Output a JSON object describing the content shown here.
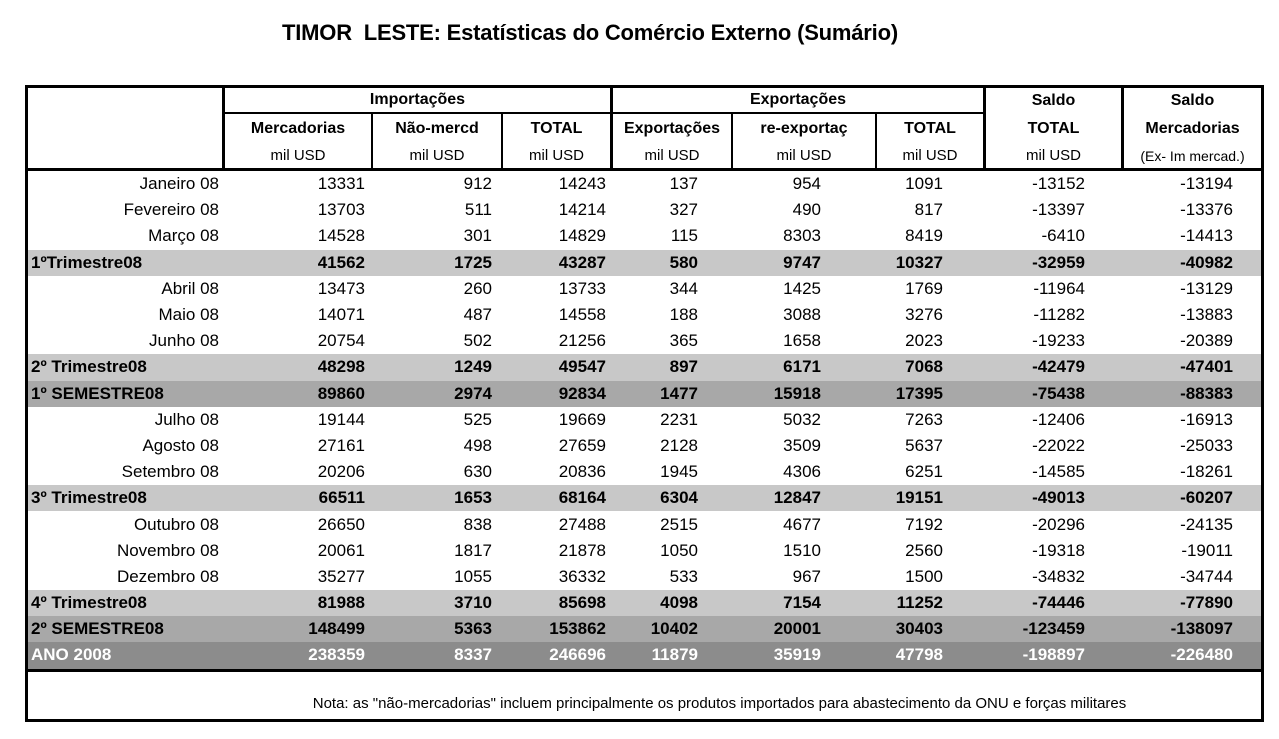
{
  "title": "TIMOR  LESTE: Estatísticas do Comércio Externo (Sumário)",
  "colors": {
    "row_band_trimestre": "#C8C8C8",
    "row_band_semestre": "#A8A8A8",
    "row_band_ano": "#8C8C8C",
    "ano_text": "#FFFFFF",
    "border": "#000000"
  },
  "table": {
    "header": {
      "groups": [
        {
          "label": "Importações",
          "columns": [
            {
              "name": "Mercadorias",
              "unit": "mil USD"
            },
            {
              "name": "Não-mercd",
              "unit": "mil USD"
            },
            {
              "name": "TOTAL",
              "unit": "mil USD"
            }
          ]
        },
        {
          "label": "Exportações",
          "columns": [
            {
              "name": "Exportações",
              "unit": "mil USD"
            },
            {
              "name": "re-exportaç",
              "unit": "mil USD"
            },
            {
              "name": "TOTAL",
              "unit": "mil USD"
            }
          ]
        }
      ],
      "saldo_columns": [
        {
          "line1": "Saldo",
          "line2": "TOTAL",
          "line3": "mil USD"
        },
        {
          "line1": "Saldo",
          "line2": "Mercadorias",
          "line3": "(Ex- Im mercad.)"
        }
      ]
    },
    "column_keys": [
      "importacoes-mercadorias",
      "importacoes-nao-mercd",
      "importacoes-total",
      "exportacoes",
      "re-exportac",
      "exportacoes-total",
      "saldo-total",
      "saldo-mercadorias"
    ],
    "rows": [
      {
        "label": "Janeiro 08",
        "type": "month",
        "values": [
          "13331",
          "912",
          "14243",
          "137",
          "954",
          "1091",
          "-13152",
          "-13194"
        ]
      },
      {
        "label": "Fevereiro 08",
        "type": "month",
        "values": [
          "13703",
          "511",
          "14214",
          "327",
          "490",
          "817",
          "-13397",
          "-13376"
        ]
      },
      {
        "label": "Março 08",
        "type": "month",
        "values": [
          "14528",
          "301",
          "14829",
          "115",
          "8303",
          "8419",
          "-6410",
          "-14413"
        ]
      },
      {
        "label": "1ºTrimestre08",
        "type": "trimestre",
        "values": [
          "41562",
          "1725",
          "43287",
          "580",
          "9747",
          "10327",
          "-32959",
          "-40982"
        ]
      },
      {
        "label": "Abril 08",
        "type": "month",
        "values": [
          "13473",
          "260",
          "13733",
          "344",
          "1425",
          "1769",
          "-11964",
          "-13129"
        ]
      },
      {
        "label": "Maio 08",
        "type": "month",
        "values": [
          "14071",
          "487",
          "14558",
          "188",
          "3088",
          "3276",
          "-11282",
          "-13883"
        ]
      },
      {
        "label": "Junho 08",
        "type": "month",
        "values": [
          "20754",
          "502",
          "21256",
          "365",
          "1658",
          "2023",
          "-19233",
          "-20389"
        ]
      },
      {
        "label": "2º Trimestre08",
        "type": "trimestre",
        "values": [
          "48298",
          "1249",
          "49547",
          "897",
          "6171",
          "7068",
          "-42479",
          "-47401"
        ]
      },
      {
        "label": "1º SEMESTRE08",
        "type": "semestre",
        "values": [
          "89860",
          "2974",
          "92834",
          "1477",
          "15918",
          "17395",
          "-75438",
          "-88383"
        ]
      },
      {
        "label": "Julho 08",
        "type": "month",
        "values": [
          "19144",
          "525",
          "19669",
          "2231",
          "5032",
          "7263",
          "-12406",
          "-16913"
        ]
      },
      {
        "label": "Agosto 08",
        "type": "month",
        "values": [
          "27161",
          "498",
          "27659",
          "2128",
          "3509",
          "5637",
          "-22022",
          "-25033"
        ]
      },
      {
        "label": "Setembro 08",
        "type": "month",
        "values": [
          "20206",
          "630",
          "20836",
          "1945",
          "4306",
          "6251",
          "-14585",
          "-18261"
        ]
      },
      {
        "label": "3º Trimestre08",
        "type": "trimestre",
        "values": [
          "66511",
          "1653",
          "68164",
          "6304",
          "12847",
          "19151",
          "-49013",
          "-60207"
        ]
      },
      {
        "label": "Outubro 08",
        "type": "month",
        "values": [
          "26650",
          "838",
          "27488",
          "2515",
          "4677",
          "7192",
          "-20296",
          "-24135"
        ]
      },
      {
        "label": "Novembro 08",
        "type": "month",
        "values": [
          "20061",
          "1817",
          "21878",
          "1050",
          "1510",
          "2560",
          "-19318",
          "-19011"
        ]
      },
      {
        "label": "Dezembro 08",
        "type": "month",
        "values": [
          "35277",
          "1055",
          "36332",
          "533",
          "967",
          "1500",
          "-34832",
          "-34744"
        ]
      },
      {
        "label": "4º Trimestre08",
        "type": "trimestre",
        "values": [
          "81988",
          "3710",
          "85698",
          "4098",
          "7154",
          "11252",
          "-74446",
          "-77890"
        ]
      },
      {
        "label": "2º SEMESTRE08",
        "type": "semestre",
        "values": [
          "148499",
          "5363",
          "153862",
          "10402",
          "20001",
          "30403",
          "-123459",
          "-138097"
        ]
      },
      {
        "label": "ANO 2008",
        "type": "ano",
        "values": [
          "238359",
          "8337",
          "246696",
          "11879",
          "35919",
          "47798",
          "-198897",
          "-226480"
        ]
      }
    ],
    "note": "Nota: as \"não-mercadorias\" incluem principalmente os produtos importados para abastecimento da ONU e forças militares"
  }
}
